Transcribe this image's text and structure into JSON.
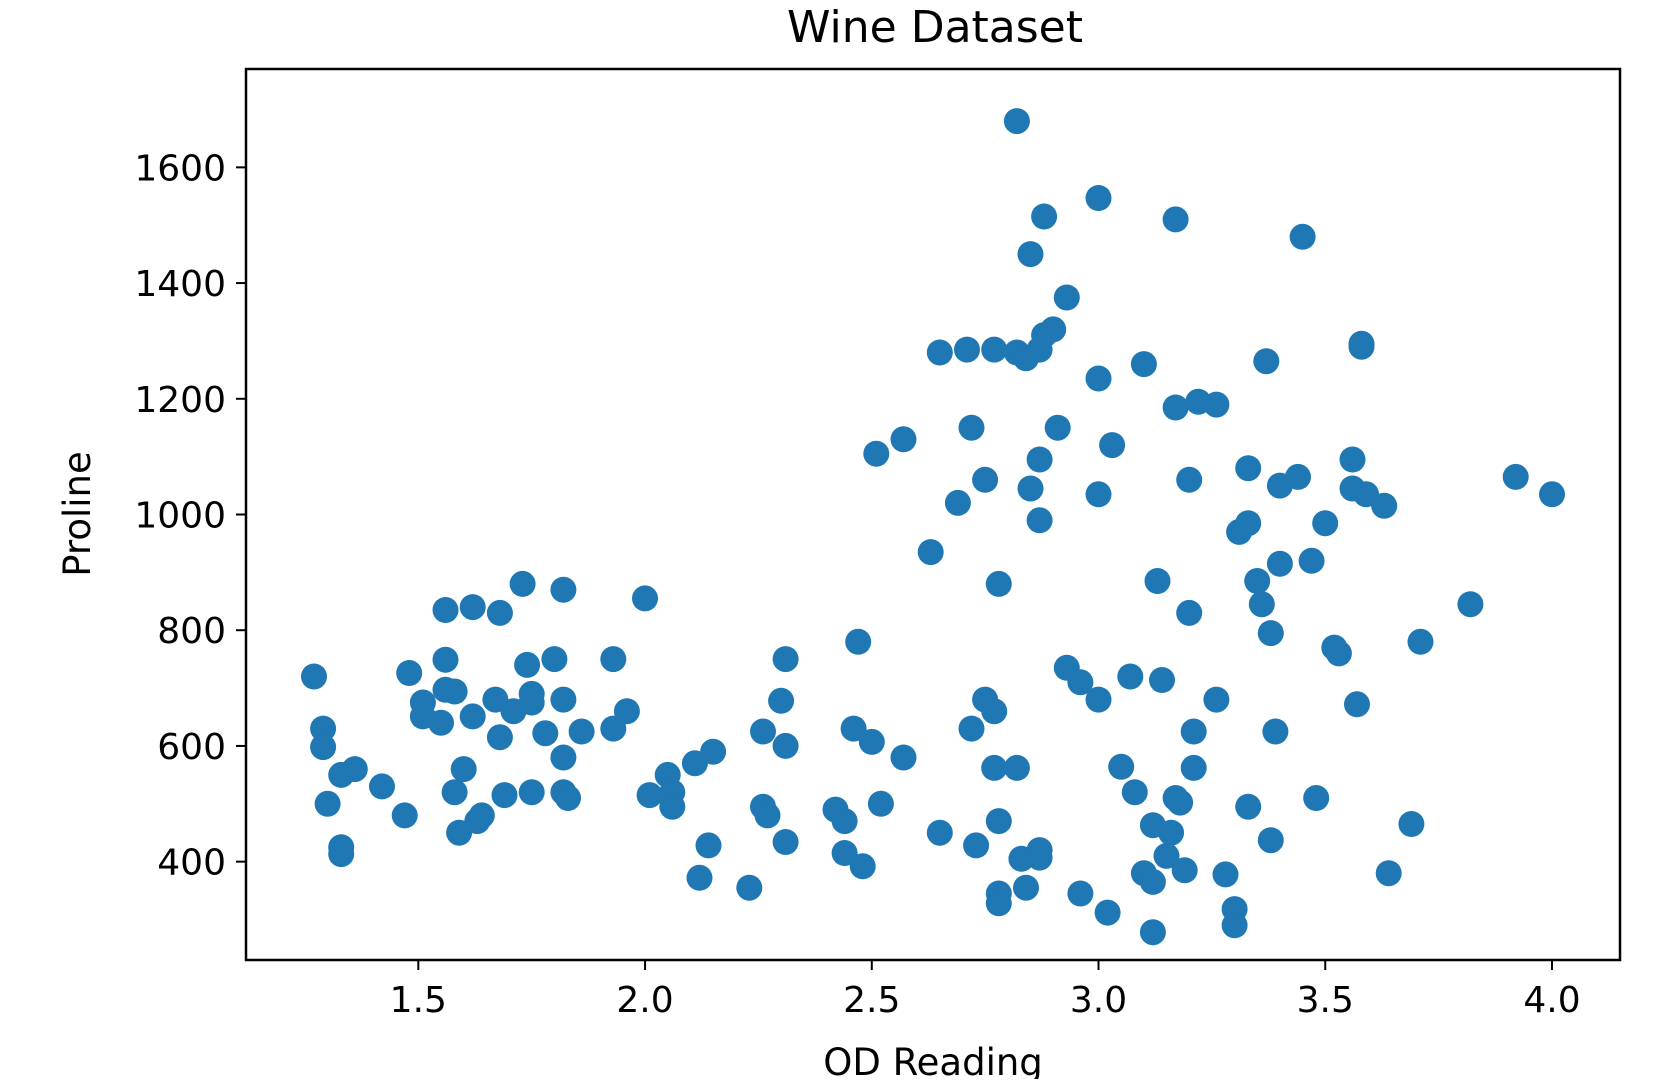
{
  "chart_data": {
    "type": "scatter",
    "title": "Wine Dataset",
    "xlabel": "OD Reading",
    "ylabel": "Proline",
    "xlim": [
      1.12,
      4.15
    ],
    "ylim": [
      230,
      1770
    ],
    "xticks": [
      1.5,
      2.0,
      2.5,
      3.0,
      3.5,
      4.0
    ],
    "xtick_labels": [
      "1.5",
      "2.0",
      "2.5",
      "3.0",
      "3.5",
      "4.0"
    ],
    "yticks": [
      400,
      600,
      800,
      1000,
      1200,
      1400,
      1600
    ],
    "ytick_labels": [
      "400",
      "600",
      "800",
      "1000",
      "1200",
      "1400",
      "1600"
    ],
    "grid": false,
    "legend": null,
    "marker_color": "#1f77b4",
    "points": [
      [
        1.27,
        720
      ],
      [
        1.29,
        630
      ],
      [
        1.29,
        598
      ],
      [
        1.3,
        500
      ],
      [
        1.33,
        550
      ],
      [
        1.33,
        425
      ],
      [
        1.33,
        413
      ],
      [
        1.36,
        560
      ],
      [
        1.42,
        530
      ],
      [
        1.47,
        480
      ],
      [
        1.48,
        726
      ],
      [
        1.51,
        675
      ],
      [
        1.51,
        651
      ],
      [
        1.55,
        640
      ],
      [
        1.56,
        835
      ],
      [
        1.56,
        749
      ],
      [
        1.56,
        697
      ],
      [
        1.58,
        694
      ],
      [
        1.58,
        520
      ],
      [
        1.59,
        450
      ],
      [
        1.6,
        560
      ],
      [
        1.62,
        840
      ],
      [
        1.62,
        651
      ],
      [
        1.63,
        470
      ],
      [
        1.64,
        480
      ],
      [
        1.67,
        680
      ],
      [
        1.68,
        830
      ],
      [
        1.68,
        615
      ],
      [
        1.69,
        515
      ],
      [
        1.71,
        660
      ],
      [
        1.73,
        880
      ],
      [
        1.74,
        740
      ],
      [
        1.75,
        690
      ],
      [
        1.75,
        675
      ],
      [
        1.75,
        520
      ],
      [
        1.78,
        622
      ],
      [
        1.8,
        750
      ],
      [
        1.82,
        870
      ],
      [
        1.82,
        680
      ],
      [
        1.82,
        580
      ],
      [
        1.82,
        520
      ],
      [
        1.83,
        510
      ],
      [
        1.86,
        625
      ],
      [
        1.93,
        630
      ],
      [
        1.93,
        750
      ],
      [
        1.96,
        660
      ],
      [
        2.0,
        855
      ],
      [
        2.01,
        515
      ],
      [
        2.05,
        550
      ],
      [
        2.06,
        520
      ],
      [
        2.06,
        495
      ],
      [
        2.11,
        570
      ],
      [
        2.12,
        372
      ],
      [
        2.14,
        428
      ],
      [
        2.15,
        590
      ],
      [
        2.23,
        355
      ],
      [
        2.26,
        625
      ],
      [
        2.26,
        495
      ],
      [
        2.27,
        480
      ],
      [
        2.3,
        678
      ],
      [
        2.31,
        750
      ],
      [
        2.31,
        600
      ],
      [
        2.31,
        434
      ],
      [
        2.42,
        490
      ],
      [
        2.44,
        470
      ],
      [
        2.44,
        415
      ],
      [
        2.46,
        630
      ],
      [
        2.47,
        780
      ],
      [
        2.48,
        392
      ],
      [
        2.5,
        607
      ],
      [
        2.51,
        1105
      ],
      [
        2.52,
        500
      ],
      [
        2.57,
        1130
      ],
      [
        2.57,
        580
      ],
      [
        2.63,
        935
      ],
      [
        2.65,
        1280
      ],
      [
        2.65,
        450
      ],
      [
        2.69,
        1020
      ],
      [
        2.71,
        1285
      ],
      [
        2.72,
        630
      ],
      [
        2.72,
        1150
      ],
      [
        2.73,
        428
      ],
      [
        2.75,
        1060
      ],
      [
        2.75,
        680
      ],
      [
        2.77,
        660
      ],
      [
        2.77,
        1285
      ],
      [
        2.77,
        562
      ],
      [
        2.78,
        880
      ],
      [
        2.78,
        470
      ],
      [
        2.78,
        345
      ],
      [
        2.78,
        328
      ],
      [
        2.82,
        1680
      ],
      [
        2.82,
        1280
      ],
      [
        2.82,
        562
      ],
      [
        2.83,
        405
      ],
      [
        2.84,
        1270
      ],
      [
        2.84,
        355
      ],
      [
        2.85,
        1450
      ],
      [
        2.85,
        1045
      ],
      [
        2.87,
        1285
      ],
      [
        2.87,
        1095
      ],
      [
        2.87,
        990
      ],
      [
        2.87,
        420
      ],
      [
        2.87,
        407
      ],
      [
        2.88,
        1515
      ],
      [
        2.88,
        1310
      ],
      [
        2.9,
        1320
      ],
      [
        2.91,
        1150
      ],
      [
        2.93,
        1375
      ],
      [
        2.93,
        735
      ],
      [
        2.96,
        710
      ],
      [
        2.96,
        345
      ],
      [
        3.0,
        1547
      ],
      [
        3.0,
        1235
      ],
      [
        3.0,
        1035
      ],
      [
        3.0,
        680
      ],
      [
        3.02,
        312
      ],
      [
        3.03,
        1120
      ],
      [
        3.05,
        564
      ],
      [
        3.07,
        720
      ],
      [
        3.08,
        520
      ],
      [
        3.1,
        1260
      ],
      [
        3.1,
        380
      ],
      [
        3.12,
        463
      ],
      [
        3.12,
        365
      ],
      [
        3.12,
        278
      ],
      [
        3.13,
        885
      ],
      [
        3.14,
        714
      ],
      [
        3.15,
        410
      ],
      [
        3.16,
        450
      ],
      [
        3.17,
        1510
      ],
      [
        3.17,
        1185
      ],
      [
        3.17,
        510
      ],
      [
        3.18,
        502
      ],
      [
        3.19,
        385
      ],
      [
        3.2,
        1060
      ],
      [
        3.2,
        830
      ],
      [
        3.21,
        625
      ],
      [
        3.21,
        562
      ],
      [
        3.22,
        1195
      ],
      [
        3.26,
        1190
      ],
      [
        3.26,
        680
      ],
      [
        3.28,
        378
      ],
      [
        3.3,
        318
      ],
      [
        3.3,
        290
      ],
      [
        3.31,
        970
      ],
      [
        3.33,
        1080
      ],
      [
        3.33,
        985
      ],
      [
        3.33,
        495
      ],
      [
        3.35,
        885
      ],
      [
        3.36,
        845
      ],
      [
        3.37,
        1265
      ],
      [
        3.38,
        795
      ],
      [
        3.38,
        437
      ],
      [
        3.39,
        625
      ],
      [
        3.4,
        1050
      ],
      [
        3.4,
        915
      ],
      [
        3.44,
        1065
      ],
      [
        3.45,
        1480
      ],
      [
        3.47,
        920
      ],
      [
        3.48,
        510
      ],
      [
        3.5,
        985
      ],
      [
        3.52,
        770
      ],
      [
        3.53,
        760
      ],
      [
        3.56,
        1095
      ],
      [
        3.56,
        1045
      ],
      [
        3.57,
        672
      ],
      [
        3.58,
        1295
      ],
      [
        3.58,
        1290
      ],
      [
        3.59,
        1035
      ],
      [
        3.63,
        1015
      ],
      [
        3.64,
        380
      ],
      [
        3.69,
        465
      ],
      [
        3.71,
        780
      ],
      [
        3.82,
        845
      ],
      [
        3.92,
        1065
      ],
      [
        4.0,
        1035
      ]
    ]
  }
}
